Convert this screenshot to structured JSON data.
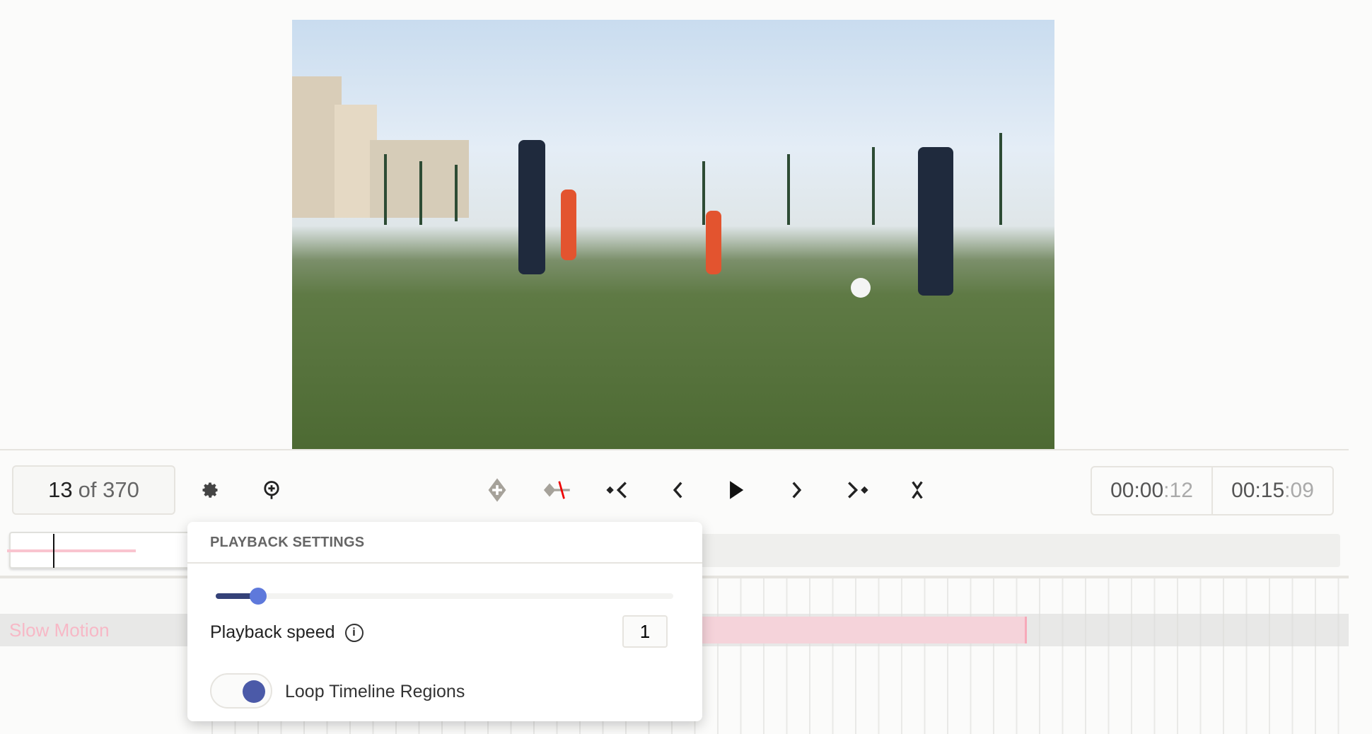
{
  "frame_counter": {
    "current": "13",
    "rest": "of 370"
  },
  "toolbar": {
    "icons": [
      "gear-icon",
      "zoom-in-icon",
      "add-keyframe-icon",
      "remove-keyframe-icon",
      "previous-keyframe-icon",
      "previous-frame-icon",
      "play-icon",
      "next-frame-icon",
      "next-keyframe-icon",
      "collapse-icon"
    ]
  },
  "time": {
    "current_main": "00:00",
    "current_frames": ":12",
    "total_main": "00:15",
    "total_frames": ":09"
  },
  "track": {
    "label": "Slow Motion",
    "color": "#f5d3da"
  },
  "playback_settings": {
    "title": "PLAYBACK SETTINGS",
    "speed_label": "Playback speed",
    "speed_value": "1",
    "slider_fraction": 0.08,
    "loop_label": "Loop Timeline Regions",
    "loop_enabled": true,
    "accent": "#4b5aa8"
  }
}
